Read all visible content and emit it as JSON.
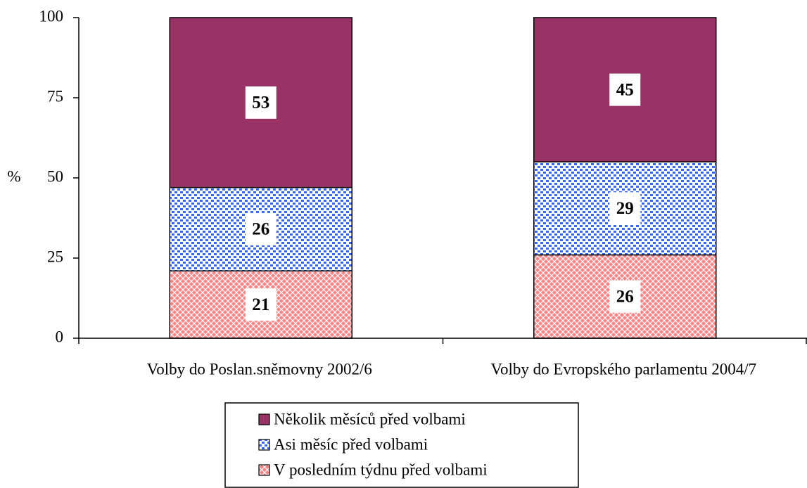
{
  "chart_data": {
    "type": "stacked_bar",
    "categories": [
      "Volby do Poslan.sněmovny 2002/6",
      "Volby do Evropského parlamentu 2004/7"
    ],
    "series": [
      {
        "name": "V posledním týdnu před volbami",
        "color": "#ff8080",
        "values": [
          21,
          26
        ]
      },
      {
        "name": "Asi měsíc před volbami",
        "color": "#3366ff",
        "values": [
          26,
          29
        ]
      },
      {
        "name": "Několik měsíců před volbami",
        "color": "#993366",
        "values": [
          53,
          45
        ]
      }
    ],
    "ylabel": "%",
    "ylim": [
      0,
      100
    ],
    "yticks": [
      0,
      25,
      50,
      75,
      100
    ]
  }
}
